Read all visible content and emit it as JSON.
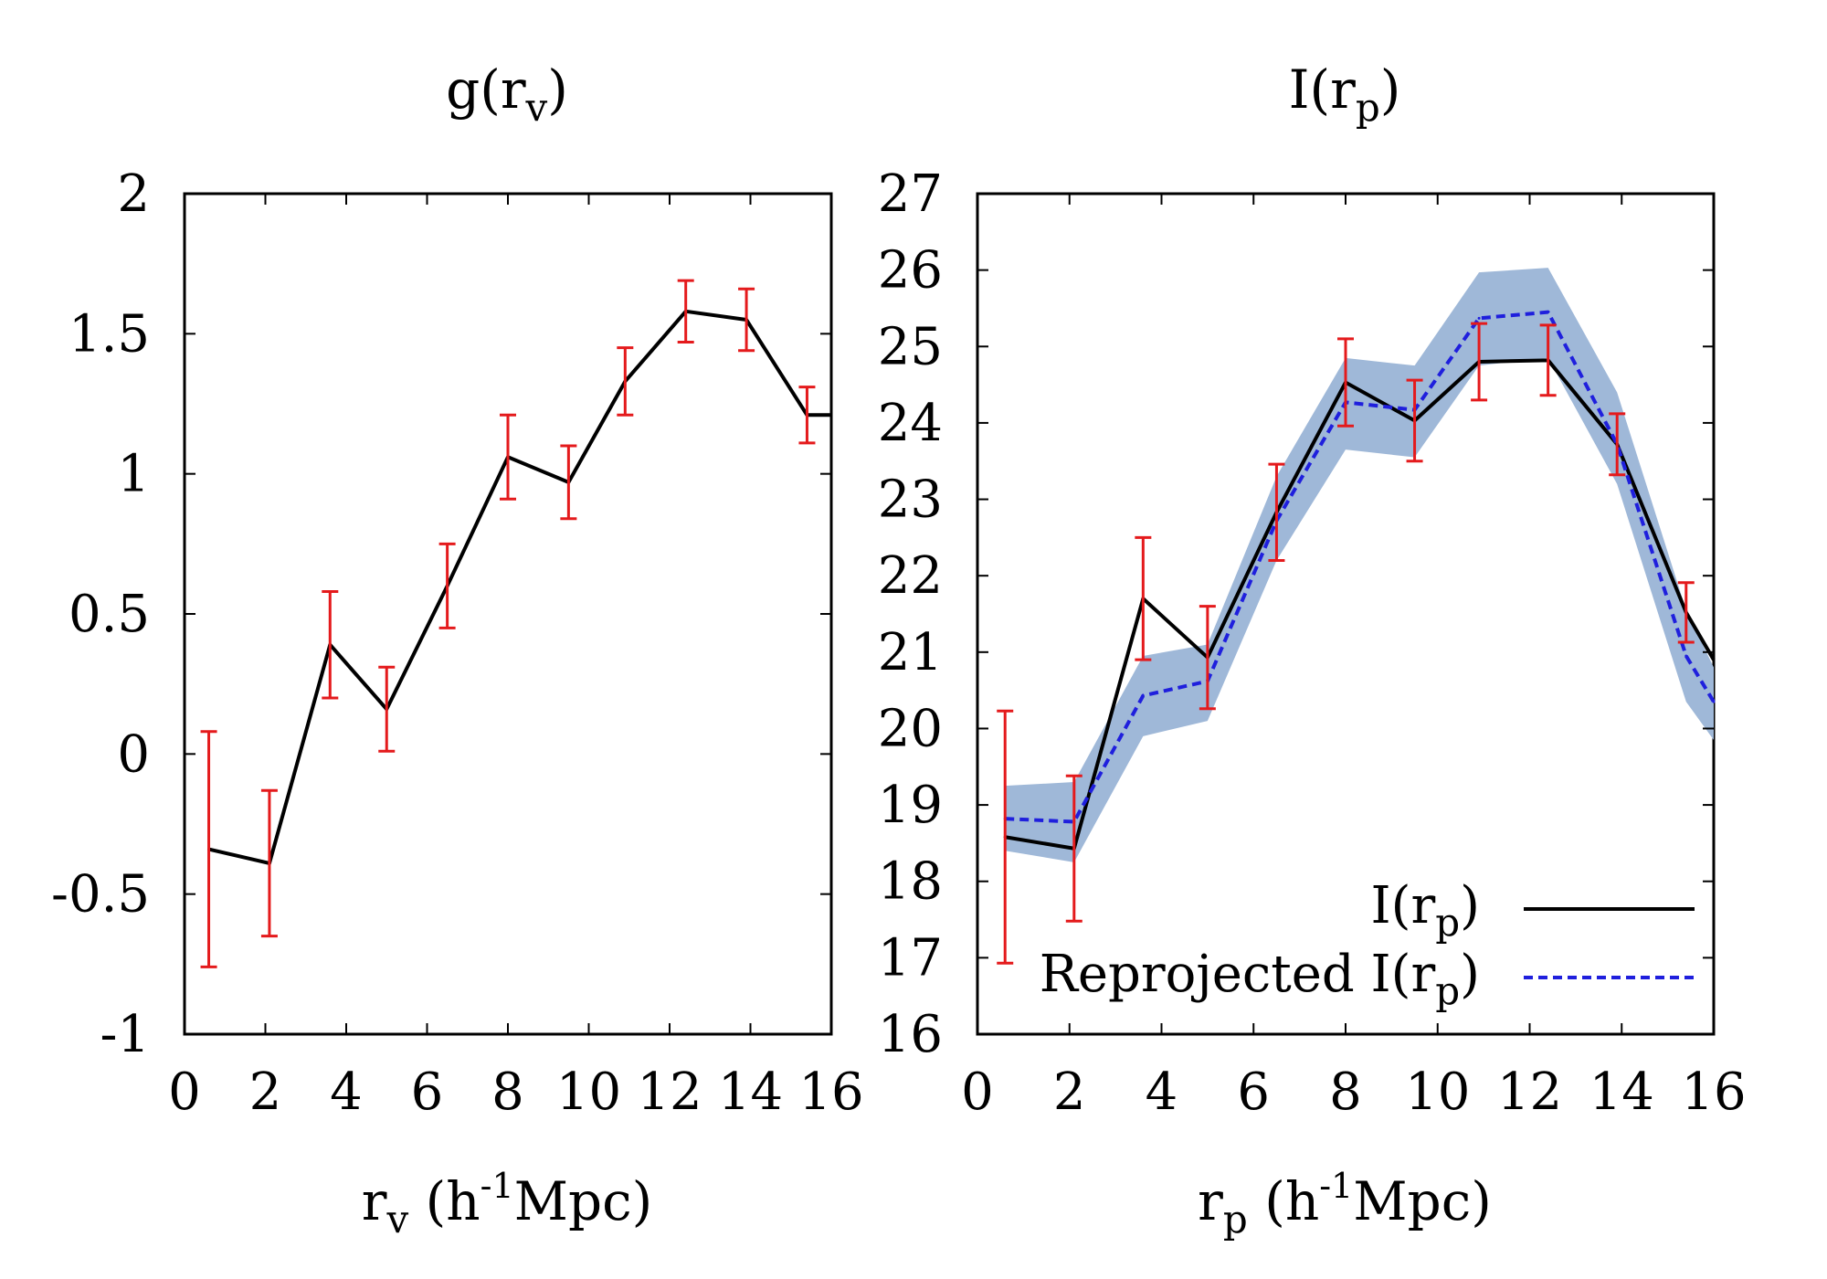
{
  "chart_data": [
    {
      "type": "line",
      "title": {
        "base": "g(r",
        "sub": "v",
        "close": ")"
      },
      "xlabel": {
        "base": "r",
        "sub": "v",
        "mid": " (h",
        "sup": "-1",
        "tail": "Mpc)"
      },
      "ylabel": "",
      "xlim": [
        0,
        16
      ],
      "ylim": [
        -1,
        2
      ],
      "xticks": [
        0,
        2,
        4,
        6,
        8,
        10,
        12,
        14,
        16
      ],
      "xtick_labels": [
        "0",
        "2",
        "4",
        "6",
        "8",
        "10",
        "12",
        "14",
        "16"
      ],
      "yticks": [
        -1,
        -0.5,
        0,
        0.5,
        1,
        1.5,
        2
      ],
      "ytick_labels": [
        "-1",
        "-0.5",
        "0",
        "0.5",
        "1",
        "1.5",
        "2"
      ],
      "grid": false,
      "legend": null,
      "series": [
        {
          "color": "#000000",
          "style": "solid",
          "x": [
            0.6,
            2.1,
            3.6,
            5.0,
            6.5,
            8.0,
            9.5,
            10.9,
            12.4,
            13.9,
            15.4,
            16.0
          ],
          "y": [
            -0.34,
            -0.39,
            0.39,
            0.16,
            0.6,
            1.06,
            0.97,
            1.33,
            1.58,
            1.55,
            1.21,
            1.21
          ]
        }
      ],
      "errorbars": {
        "color": "#e41a1c",
        "x": [
          0.6,
          2.1,
          3.6,
          5.0,
          6.5,
          8.0,
          9.5,
          10.9,
          12.4,
          13.9,
          15.4
        ],
        "y": [
          -0.34,
          -0.39,
          0.39,
          0.16,
          0.6,
          1.06,
          0.97,
          1.33,
          1.58,
          1.55,
          1.21
        ],
        "err": [
          0.42,
          0.26,
          0.19,
          0.15,
          0.15,
          0.15,
          0.13,
          0.12,
          0.11,
          0.11,
          0.1
        ]
      }
    },
    {
      "type": "line",
      "title": {
        "base": "I(r",
        "sub": "p",
        "close": ")"
      },
      "xlabel": {
        "base": "r",
        "sub": "p",
        "mid": " (h",
        "sup": "-1",
        "tail": "Mpc)"
      },
      "ylabel": "",
      "xlim": [
        0,
        16
      ],
      "ylim": [
        16,
        27
      ],
      "xticks": [
        0,
        2,
        4,
        6,
        8,
        10,
        12,
        14,
        16
      ],
      "xtick_labels": [
        "0",
        "2",
        "4",
        "6",
        "8",
        "10",
        "12",
        "14",
        "16"
      ],
      "yticks": [
        16,
        17,
        18,
        19,
        20,
        21,
        22,
        23,
        24,
        25,
        26,
        27
      ],
      "ytick_labels": [
        "16",
        "17",
        "18",
        "19",
        "20",
        "21",
        "22",
        "23",
        "24",
        "25",
        "26",
        "27"
      ],
      "grid": false,
      "legend": {
        "placement": "bottom-right",
        "entries": [
          {
            "base": "I(r",
            "sub": "p",
            "close": ")",
            "color": "#000000",
            "style": "solid"
          },
          {
            "base": "Reprojected I(r",
            "sub": "p",
            "close": ")",
            "color": "#1f1fdd",
            "style": "dashed"
          }
        ]
      },
      "band": {
        "color": "#9fb8d8",
        "x": [
          0.6,
          2.1,
          3.6,
          5.0,
          6.5,
          8.0,
          9.5,
          10.9,
          12.4,
          13.9,
          15.4,
          16.0
        ],
        "upper": [
          19.25,
          19.3,
          20.95,
          21.1,
          23.3,
          24.85,
          24.75,
          25.97,
          26.03,
          24.4,
          21.55,
          20.8
        ],
        "lower": [
          18.4,
          18.25,
          19.9,
          20.1,
          22.2,
          23.65,
          23.55,
          24.75,
          24.85,
          23.2,
          20.35,
          19.85
        ]
      },
      "series": [
        {
          "name": "I(rp)",
          "color": "#000000",
          "style": "solid",
          "x": [
            0.6,
            2.1,
            3.6,
            5.0,
            6.5,
            8.0,
            9.5,
            10.9,
            12.4,
            13.9,
            15.4,
            16.0
          ],
          "y": [
            18.58,
            18.43,
            21.7,
            20.93,
            22.83,
            24.53,
            24.03,
            24.8,
            24.82,
            23.72,
            21.52,
            20.9
          ]
        },
        {
          "name": "Reprojected I(rp)",
          "color": "#1f1fdd",
          "style": "dashed",
          "x": [
            0.6,
            2.1,
            3.6,
            5.0,
            6.5,
            8.0,
            9.5,
            10.9,
            12.4,
            13.9,
            15.4,
            16.0
          ],
          "y": [
            18.82,
            18.78,
            20.43,
            20.62,
            22.72,
            24.27,
            24.17,
            25.37,
            25.45,
            23.72,
            20.95,
            20.35
          ]
        }
      ],
      "errorbars": {
        "color": "#e41a1c",
        "x": [
          0.6,
          2.1,
          3.6,
          5.0,
          6.5,
          8.0,
          9.5,
          10.9,
          12.4,
          13.9,
          15.4
        ],
        "y": [
          18.58,
          18.43,
          21.7,
          20.93,
          22.83,
          24.53,
          24.03,
          24.8,
          24.82,
          23.72,
          21.52
        ],
        "err": [
          1.65,
          0.95,
          0.8,
          0.67,
          0.63,
          0.57,
          0.53,
          0.5,
          0.46,
          0.4,
          0.39
        ]
      }
    }
  ]
}
